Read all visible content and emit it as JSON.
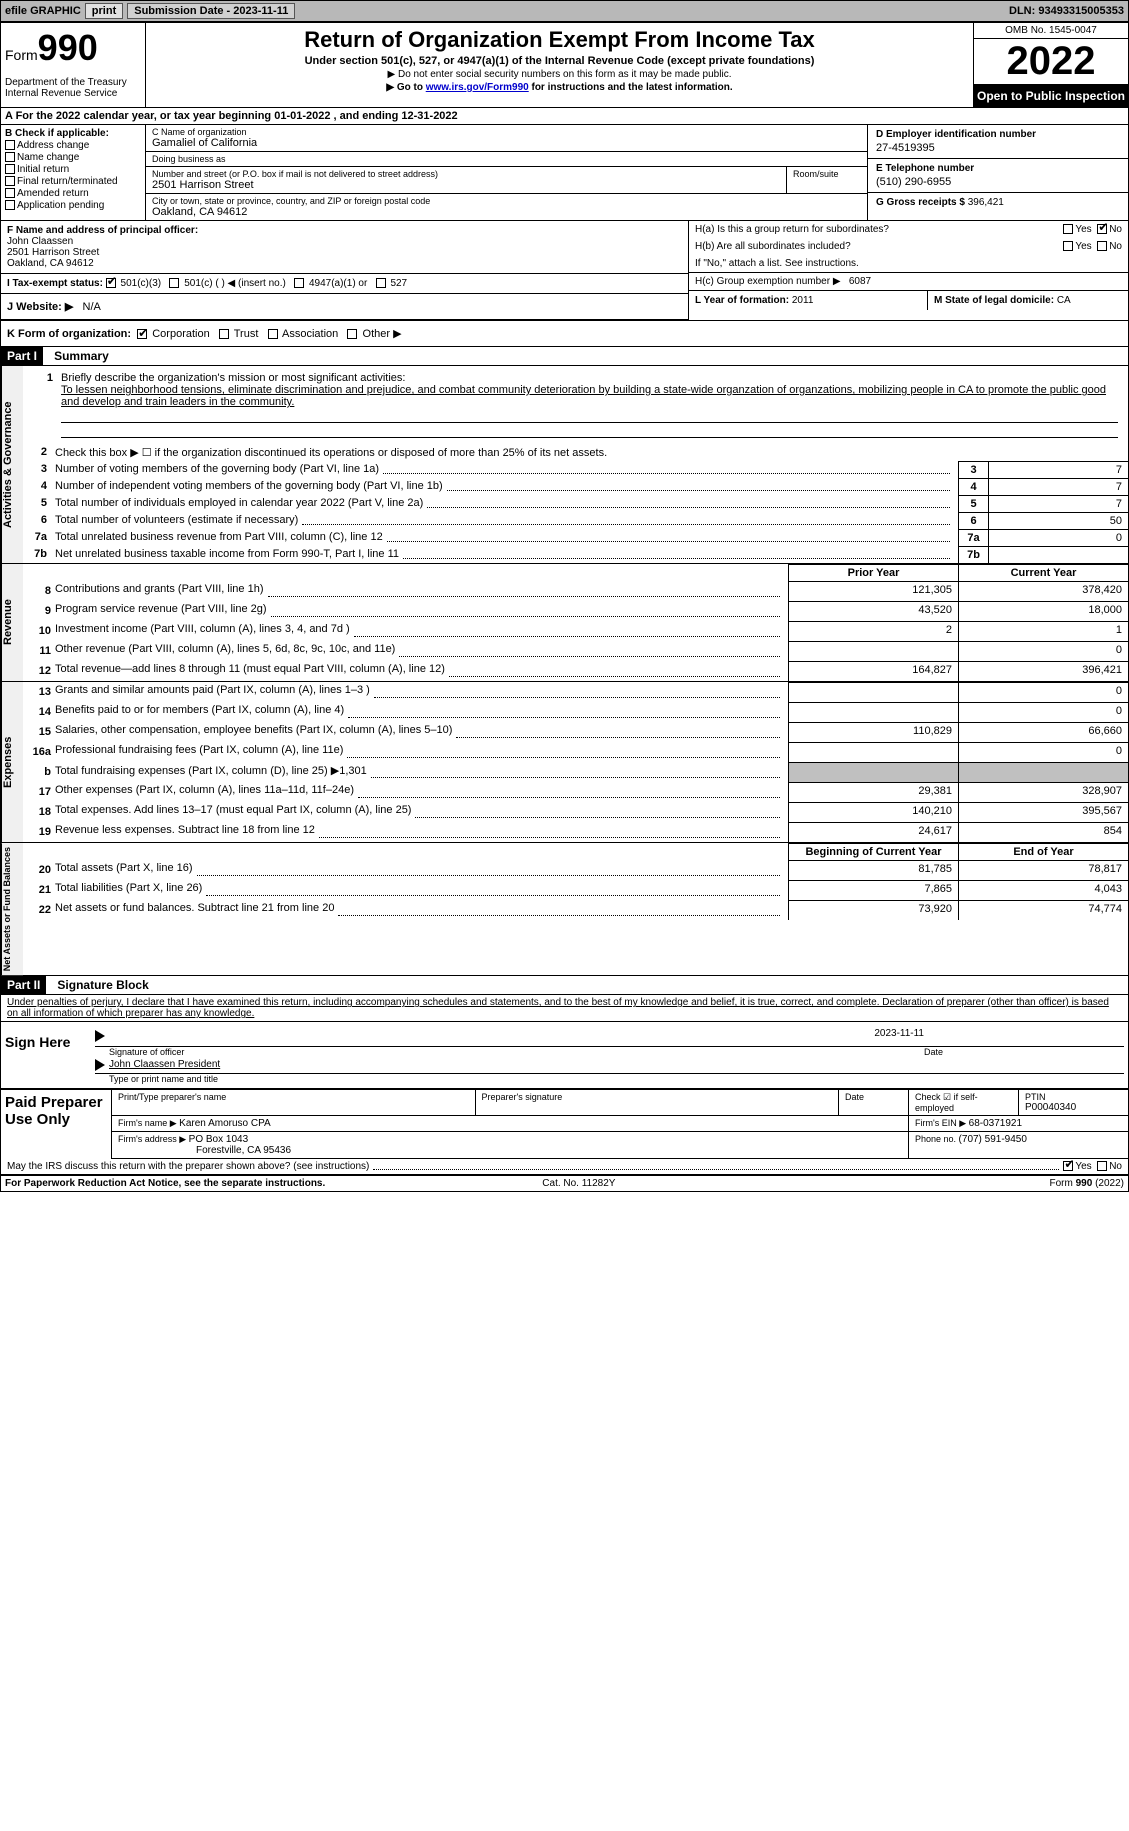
{
  "toolbar": {
    "efile": "efile GRAPHIC",
    "print": "print",
    "submission_label": "Submission Date - ",
    "submission_date": "2023-11-11",
    "dln_label": "DLN: ",
    "dln": "93493315005353"
  },
  "header": {
    "form_word": "Form",
    "form_num": "990",
    "dept": "Department of the Treasury",
    "irs": "Internal Revenue Service",
    "title": "Return of Organization Exempt From Income Tax",
    "subtitle": "Under section 501(c), 527, or 4947(a)(1) of the Internal Revenue Code (except private foundations)",
    "note1": "▶ Do not enter social security numbers on this form as it may be made public.",
    "note2_pre": "▶ Go to ",
    "note2_link": "www.irs.gov/Form990",
    "note2_post": " for instructions and the latest information.",
    "omb": "OMB No. 1545-0047",
    "year": "2022",
    "open": "Open to Public Inspection"
  },
  "row_a": {
    "text_pre": "A For the 2022 calendar year, or tax year beginning ",
    "begin": "01-01-2022",
    "mid": " , and ending ",
    "end": "12-31-2022"
  },
  "col_b": {
    "label": "B Check if applicable:",
    "items": [
      "Address change",
      "Name change",
      "Initial return",
      "Final return/terminated",
      "Amended return",
      "Application pending"
    ]
  },
  "col_c": {
    "name_label": "C Name of organization",
    "name": "Gamaliel of California",
    "dba_label": "Doing business as",
    "dba": "",
    "street_label": "Number and street (or P.O. box if mail is not delivered to street address)",
    "street": "2501 Harrison Street",
    "room_label": "Room/suite",
    "city_label": "City or town, state or province, country, and ZIP or foreign postal code",
    "city": "Oakland, CA  94612"
  },
  "col_d": {
    "ein_label": "D Employer identification number",
    "ein": "27-4519395",
    "phone_label": "E Telephone number",
    "phone": "(510) 290-6955",
    "gross_label": "G Gross receipts $ ",
    "gross": "396,421"
  },
  "row_f": {
    "label": "F Name and address of principal officer:",
    "name": "John Claassen",
    "street": "2501 Harrison Street",
    "city": "Oakland, CA  94612"
  },
  "h": {
    "a_label": "H(a)  Is this a group return for subordinates?",
    "b_label": "H(b)  Are all subordinates included?",
    "b_note": "If \"No,\" attach a list. See instructions.",
    "c_label": "H(c)  Group exemption number ▶",
    "c_val": "6087",
    "yes": "Yes",
    "no": "No"
  },
  "row_i": {
    "label": "I Tax-exempt status:",
    "opts": [
      "501(c)(3)",
      "501(c) (   ) ◀ (insert no.)",
      "4947(a)(1) or",
      "527"
    ]
  },
  "row_j": {
    "label": "J Website: ▶",
    "val": "N/A"
  },
  "row_k": {
    "label": "K Form of organization:",
    "opts": [
      "Corporation",
      "Trust",
      "Association",
      "Other ▶"
    ]
  },
  "lm": {
    "l_label": "L Year of formation: ",
    "l_val": "2011",
    "m_label": "M State of legal domicile: ",
    "m_val": "CA"
  },
  "part1": {
    "num": "Part I",
    "title": "Summary",
    "mission_label": "Briefly describe the organization's mission or most significant activities:",
    "mission": "To lessen neighborhood tensions, eliminate discrimination and prejudice, and combat community deterioration by building a state-wide organzation of organzations, mobilizing people in CA to promote the public good and develop and train leaders in the community.",
    "line2": "Check this box ▶ ☐ if the organization discontinued its operations or disposed of more than 25% of its net assets.",
    "governance": [
      {
        "n": "3",
        "label": "Number of voting members of the governing body (Part VI, line 1a)",
        "val": "7"
      },
      {
        "n": "4",
        "label": "Number of independent voting members of the governing body (Part VI, line 1b)",
        "val": "7"
      },
      {
        "n": "5",
        "label": "Total number of individuals employed in calendar year 2022 (Part V, line 2a)",
        "val": "7"
      },
      {
        "n": "6",
        "label": "Total number of volunteers (estimate if necessary)",
        "val": "50"
      },
      {
        "n": "7a",
        "label": "Total unrelated business revenue from Part VIII, column (C), line 12",
        "val": "0"
      },
      {
        "n": "7b",
        "label": "Net unrelated business taxable income from Form 990-T, Part I, line 11",
        "val": ""
      }
    ],
    "prior_hdr": "Prior Year",
    "curr_hdr": "Current Year",
    "revenue": [
      {
        "n": "8",
        "label": "Contributions and grants (Part VIII, line 1h)",
        "prior": "121,305",
        "curr": "378,420"
      },
      {
        "n": "9",
        "label": "Program service revenue (Part VIII, line 2g)",
        "prior": "43,520",
        "curr": "18,000"
      },
      {
        "n": "10",
        "label": "Investment income (Part VIII, column (A), lines 3, 4, and 7d )",
        "prior": "2",
        "curr": "1"
      },
      {
        "n": "11",
        "label": "Other revenue (Part VIII, column (A), lines 5, 6d, 8c, 9c, 10c, and 11e)",
        "prior": "",
        "curr": "0"
      },
      {
        "n": "12",
        "label": "Total revenue—add lines 8 through 11 (must equal Part VIII, column (A), line 12)",
        "prior": "164,827",
        "curr": "396,421"
      }
    ],
    "expenses": [
      {
        "n": "13",
        "label": "Grants and similar amounts paid (Part IX, column (A), lines 1–3 )",
        "prior": "",
        "curr": "0"
      },
      {
        "n": "14",
        "label": "Benefits paid to or for members (Part IX, column (A), line 4)",
        "prior": "",
        "curr": "0"
      },
      {
        "n": "15",
        "label": "Salaries, other compensation, employee benefits (Part IX, column (A), lines 5–10)",
        "prior": "110,829",
        "curr": "66,660"
      },
      {
        "n": "16a",
        "label": "Professional fundraising fees (Part IX, column (A), line 11e)",
        "prior": "",
        "curr": "0"
      },
      {
        "n": "b",
        "label": "Total fundraising expenses (Part IX, column (D), line 25) ▶1,301",
        "prior": "SHADE",
        "curr": "SHADE"
      },
      {
        "n": "17",
        "label": "Other expenses (Part IX, column (A), lines 11a–11d, 11f–24e)",
        "prior": "29,381",
        "curr": "328,907"
      },
      {
        "n": "18",
        "label": "Total expenses. Add lines 13–17 (must equal Part IX, column (A), line 25)",
        "prior": "140,210",
        "curr": "395,567"
      },
      {
        "n": "19",
        "label": "Revenue less expenses. Subtract line 18 from line 12",
        "prior": "24,617",
        "curr": "854"
      }
    ],
    "begin_hdr": "Beginning of Current Year",
    "end_hdr": "End of Year",
    "netassets": [
      {
        "n": "20",
        "label": "Total assets (Part X, line 16)",
        "prior": "81,785",
        "curr": "78,817"
      },
      {
        "n": "21",
        "label": "Total liabilities (Part X, line 26)",
        "prior": "7,865",
        "curr": "4,043"
      },
      {
        "n": "22",
        "label": "Net assets or fund balances. Subtract line 21 from line 20",
        "prior": "73,920",
        "curr": "74,774"
      }
    ],
    "vtabs": {
      "gov": "Activities & Governance",
      "rev": "Revenue",
      "exp": "Expenses",
      "net": "Net Assets or Fund Balances"
    }
  },
  "part2": {
    "num": "Part II",
    "title": "Signature Block",
    "penalty": "Under penalties of perjury, I declare that I have examined this return, including accompanying schedules and statements, and to the best of my knowledge and belief, it is true, correct, and complete. Declaration of preparer (other than officer) is based on all information of which preparer has any knowledge.",
    "sign_here": "Sign Here",
    "sig_officer": "Signature of officer",
    "sig_date": "2023-11-11",
    "date_label": "Date",
    "officer_name": "John Claassen  President",
    "type_name": "Type or print name and title",
    "paid": "Paid Preparer Use Only",
    "prep_name_label": "Print/Type preparer's name",
    "prep_sig_label": "Preparer's signature",
    "check_if": "Check ☑ if self-employed",
    "ptin_label": "PTIN",
    "ptin": "P00040340",
    "firm_name_label": "Firm's name    ▶ ",
    "firm_name": "Karen Amoruso CPA",
    "firm_ein_label": "Firm's EIN ▶ ",
    "firm_ein": "68-0371921",
    "firm_addr_label": "Firm's address ▶ ",
    "firm_addr1": "PO Box 1043",
    "firm_addr2": "Forestville, CA  95436",
    "firm_phone_label": "Phone no. ",
    "firm_phone": "(707) 591-9450",
    "may_irs": "May the IRS discuss this return with the preparer shown above? (see instructions)",
    "yes": "Yes",
    "no": "No"
  },
  "footer": {
    "pra": "For Paperwork Reduction Act Notice, see the separate instructions.",
    "cat": "Cat. No. 11282Y",
    "form": "Form 990 (2022)"
  }
}
